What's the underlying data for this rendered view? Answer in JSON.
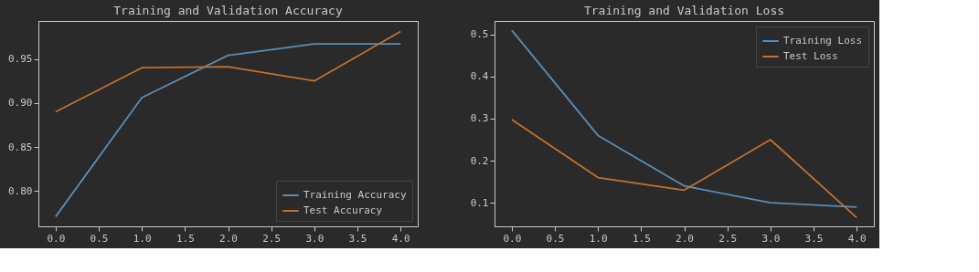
{
  "chart_data": [
    {
      "type": "line",
      "title": "Training and Validation Accuracy",
      "x": [
        0,
        1,
        2,
        3,
        4
      ],
      "xlim": [
        -0.2,
        4.2
      ],
      "xticks": [
        {
          "value": 0,
          "label": "0.0"
        },
        0.5,
        {
          "value": 1,
          "label": "1.0"
        },
        1.5,
        {
          "value": 2,
          "label": "2.0"
        },
        2.5,
        {
          "value": 3,
          "label": "3.0"
        },
        3.5,
        {
          "value": 4,
          "label": "4.0"
        }
      ],
      "ylim": [
        0.76,
        0.993
      ],
      "yticks": [
        {
          "value": 0.8,
          "label": "0.80"
        },
        0.85,
        {
          "value": 0.9,
          "label": "0.90"
        },
        0.95
      ],
      "legend": "bottom right",
      "grid": false,
      "line_style": "solid",
      "series": [
        {
          "name": "Training Accuracy",
          "color": "#5a8db5",
          "values": [
            0.771,
            0.906,
            0.954,
            0.967,
            0.967
          ]
        },
        {
          "name": "Test Accuracy",
          "color": "#c0722f",
          "values": [
            0.89,
            0.94,
            0.941,
            0.925,
            0.981
          ]
        }
      ]
    },
    {
      "type": "line",
      "title": "Training and Validation Loss",
      "x": [
        0,
        1,
        2,
        3,
        4
      ],
      "xlim": [
        -0.2,
        4.2
      ],
      "xticks": [
        {
          "value": 0,
          "label": "0.0"
        },
        0.5,
        {
          "value": 1,
          "label": "1.0"
        },
        1.5,
        {
          "value": 2,
          "label": "2.0"
        },
        2.5,
        {
          "value": 3,
          "label": "3.0"
        },
        3.5,
        {
          "value": 4,
          "label": "4.0"
        }
      ],
      "ylim": [
        0.044,
        0.532
      ],
      "yticks": [
        0.1,
        0.2,
        0.3,
        0.4,
        0.5
      ],
      "legend": "top right",
      "grid": false,
      "line_style": "solid",
      "series": [
        {
          "name": "Training Loss",
          "color": "#5a8db5",
          "values": [
            0.51,
            0.26,
            0.14,
            0.1,
            0.09
          ]
        },
        {
          "name": "Test Loss",
          "color": "#c0722f",
          "values": [
            0.298,
            0.16,
            0.13,
            0.25,
            0.065
          ]
        }
      ]
    }
  ]
}
